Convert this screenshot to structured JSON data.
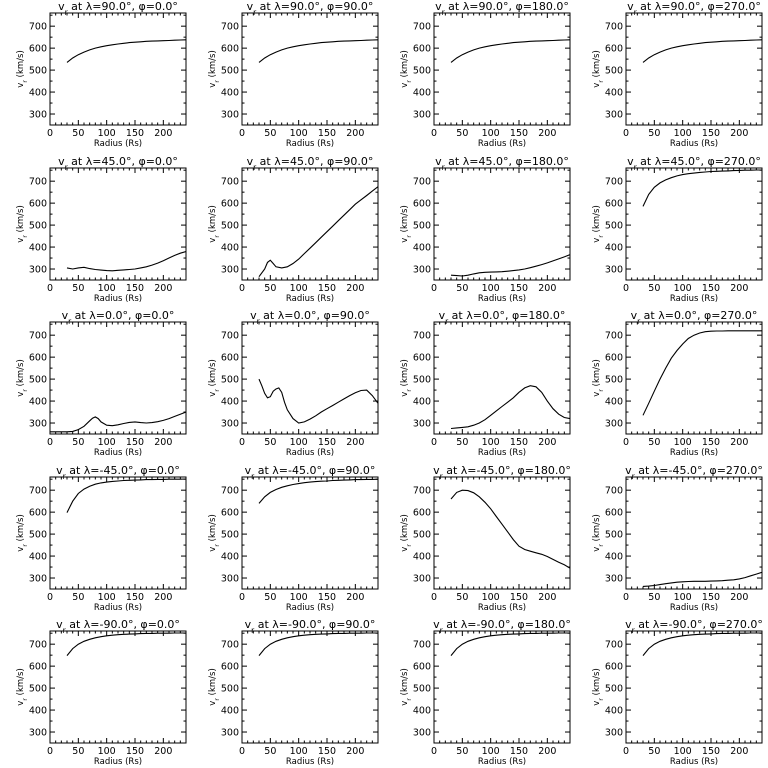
{
  "chart_data": [
    {
      "type": "line",
      "title": "v_r at λ=90.0°, φ=0.0°",
      "xlabel": "Radius (Rs)",
      "ylabel": "v_r (km/s)",
      "xlim": [
        0,
        240
      ],
      "ylim": [
        250,
        760
      ],
      "x": [
        30,
        40,
        50,
        60,
        70,
        80,
        90,
        100,
        110,
        120,
        130,
        140,
        150,
        160,
        170,
        180,
        190,
        200,
        210,
        220,
        230,
        240
      ],
      "y": [
        535,
        555,
        570,
        582,
        592,
        600,
        606,
        611,
        615,
        619,
        622,
        625,
        627,
        629,
        631,
        632,
        633,
        634,
        635,
        636,
        637,
        638
      ]
    },
    {
      "type": "line",
      "title": "v_r at λ=90.0°, φ=90.0°",
      "xlabel": "Radius (Rs)",
      "ylabel": "v_r (km/s)",
      "xlim": [
        0,
        240
      ],
      "ylim": [
        250,
        760
      ],
      "x": [
        30,
        40,
        50,
        60,
        70,
        80,
        90,
        100,
        110,
        120,
        130,
        140,
        150,
        160,
        170,
        180,
        190,
        200,
        210,
        220,
        230,
        240
      ],
      "y": [
        535,
        555,
        570,
        582,
        592,
        600,
        606,
        611,
        615,
        619,
        622,
        625,
        627,
        629,
        631,
        632,
        633,
        634,
        635,
        636,
        637,
        638
      ]
    },
    {
      "type": "line",
      "title": "v_r at λ=90.0°, φ=180.0°",
      "xlabel": "Radius (Rs)",
      "ylabel": "v_r (km/s)",
      "xlim": [
        0,
        240
      ],
      "ylim": [
        250,
        760
      ],
      "x": [
        30,
        40,
        50,
        60,
        70,
        80,
        90,
        100,
        110,
        120,
        130,
        140,
        150,
        160,
        170,
        180,
        190,
        200,
        210,
        220,
        230,
        240
      ],
      "y": [
        535,
        555,
        570,
        582,
        592,
        600,
        606,
        611,
        615,
        619,
        622,
        625,
        627,
        629,
        631,
        632,
        633,
        634,
        635,
        636,
        637,
        638
      ]
    },
    {
      "type": "line",
      "title": "v_r at λ=90.0°, φ=270.0°",
      "xlabel": "Radius (Rs)",
      "ylabel": "v_r (km/s)",
      "xlim": [
        0,
        240
      ],
      "ylim": [
        250,
        760
      ],
      "x": [
        30,
        40,
        50,
        60,
        70,
        80,
        90,
        100,
        110,
        120,
        130,
        140,
        150,
        160,
        170,
        180,
        190,
        200,
        210,
        220,
        230,
        240
      ],
      "y": [
        535,
        555,
        570,
        582,
        592,
        600,
        606,
        611,
        615,
        619,
        622,
        625,
        627,
        629,
        631,
        632,
        633,
        634,
        635,
        636,
        637,
        638
      ]
    },
    {
      "type": "line",
      "title": "v_r at λ=45.0°, φ=0.0°",
      "xlabel": "Radius (Rs)",
      "ylabel": "v_r (km/s)",
      "xlim": [
        0,
        240
      ],
      "ylim": [
        250,
        760
      ],
      "x": [
        30,
        40,
        50,
        60,
        70,
        80,
        90,
        100,
        110,
        120,
        130,
        140,
        150,
        160,
        170,
        180,
        190,
        200,
        210,
        220,
        230,
        240
      ],
      "y": [
        305,
        300,
        305,
        308,
        302,
        298,
        295,
        293,
        292,
        294,
        296,
        298,
        300,
        305,
        310,
        318,
        327,
        338,
        350,
        362,
        372,
        380
      ]
    },
    {
      "type": "line",
      "title": "v_r at λ=45.0°, φ=90.0°",
      "xlabel": "Radius (Rs)",
      "ylabel": "v_r (km/s)",
      "xlim": [
        0,
        240
      ],
      "ylim": [
        250,
        760
      ],
      "x": [
        30,
        40,
        45,
        50,
        55,
        60,
        70,
        80,
        90,
        100,
        110,
        120,
        130,
        140,
        150,
        160,
        170,
        180,
        190,
        200,
        210,
        220,
        230,
        240
      ],
      "y": [
        265,
        300,
        330,
        340,
        325,
        310,
        305,
        310,
        325,
        345,
        370,
        395,
        420,
        445,
        470,
        495,
        520,
        545,
        570,
        595,
        615,
        635,
        655,
        675
      ]
    },
    {
      "type": "line",
      "title": "v_r at λ=45.0°, φ=180.0°",
      "xlabel": "Radius (Rs)",
      "ylabel": "v_r (km/s)",
      "xlim": [
        0,
        240
      ],
      "ylim": [
        250,
        760
      ],
      "x": [
        30,
        40,
        50,
        60,
        70,
        80,
        90,
        100,
        110,
        120,
        130,
        140,
        150,
        160,
        170,
        180,
        190,
        200,
        210,
        220,
        230,
        240
      ],
      "y": [
        272,
        270,
        268,
        272,
        278,
        283,
        285,
        286,
        287,
        288,
        290,
        293,
        296,
        300,
        306,
        313,
        320,
        328,
        337,
        346,
        355,
        365
      ]
    },
    {
      "type": "line",
      "title": "v_r at λ=45.0°, φ=270.0°",
      "xlabel": "Radius (Rs)",
      "ylabel": "v_r (km/s)",
      "xlim": [
        0,
        240
      ],
      "ylim": [
        250,
        760
      ],
      "x": [
        30,
        40,
        50,
        60,
        70,
        80,
        90,
        100,
        110,
        120,
        130,
        140,
        150,
        160,
        170,
        180,
        190,
        200,
        210,
        220,
        230,
        240
      ],
      "y": [
        585,
        640,
        672,
        692,
        706,
        716,
        724,
        730,
        734,
        737,
        740,
        742,
        744,
        745,
        746,
        747,
        748,
        749,
        750,
        750,
        751,
        751
      ]
    },
    {
      "type": "line",
      "title": "v_r at λ=0.0°, φ=0.0°",
      "xlabel": "Radius (Rs)",
      "ylabel": "v_r (km/s)",
      "xlim": [
        0,
        240
      ],
      "ylim": [
        250,
        760
      ],
      "x": [
        0,
        30,
        40,
        50,
        60,
        70,
        75,
        80,
        85,
        90,
        100,
        110,
        120,
        130,
        140,
        150,
        160,
        170,
        180,
        190,
        200,
        210,
        220,
        230,
        240
      ],
      "y": [
        260,
        260,
        262,
        270,
        285,
        310,
        322,
        328,
        320,
        305,
        290,
        288,
        292,
        298,
        303,
        305,
        302,
        300,
        302,
        306,
        312,
        320,
        330,
        340,
        350
      ]
    },
    {
      "type": "line",
      "title": "v_r at λ=0.0°, φ=90.0°",
      "xlabel": "Radius (Rs)",
      "ylabel": "v_r (km/s)",
      "xlim": [
        0,
        240
      ],
      "ylim": [
        250,
        760
      ],
      "x": [
        30,
        35,
        40,
        45,
        50,
        55,
        60,
        65,
        70,
        75,
        80,
        90,
        100,
        110,
        120,
        130,
        140,
        150,
        160,
        170,
        180,
        190,
        200,
        210,
        220,
        230,
        240
      ],
      "y": [
        500,
        470,
        435,
        415,
        420,
        445,
        455,
        460,
        440,
        395,
        360,
        320,
        300,
        305,
        318,
        333,
        350,
        365,
        380,
        395,
        410,
        425,
        438,
        448,
        450,
        425,
        390
      ]
    },
    {
      "type": "line",
      "title": "v_r at λ=0.0°, φ=180.0°",
      "xlabel": "Radius (Rs)",
      "ylabel": "v_r (km/s)",
      "xlim": [
        0,
        240
      ],
      "ylim": [
        250,
        760
      ],
      "x": [
        30,
        40,
        50,
        60,
        70,
        80,
        90,
        100,
        110,
        120,
        130,
        140,
        150,
        160,
        170,
        180,
        190,
        200,
        210,
        220,
        230,
        240
      ],
      "y": [
        275,
        278,
        280,
        283,
        290,
        300,
        315,
        335,
        355,
        375,
        395,
        415,
        440,
        460,
        470,
        465,
        440,
        400,
        365,
        340,
        325,
        320
      ]
    },
    {
      "type": "line",
      "title": "v_r at λ=0.0°, φ=270.0°",
      "xlabel": "Radius (Rs)",
      "ylabel": "v_r (km/s)",
      "xlim": [
        0,
        240
      ],
      "ylim": [
        250,
        760
      ],
      "x": [
        30,
        40,
        50,
        60,
        70,
        80,
        90,
        100,
        110,
        120,
        130,
        140,
        150,
        160,
        170,
        180,
        190,
        200,
        210,
        220,
        230,
        240
      ],
      "y": [
        335,
        390,
        445,
        500,
        550,
        595,
        630,
        660,
        685,
        700,
        710,
        716,
        718,
        719,
        719,
        720,
        720,
        720,
        720,
        720,
        720,
        720
      ]
    },
    {
      "type": "line",
      "title": "v_r at λ=-45.0°, φ=0.0°",
      "xlabel": "Radius (Rs)",
      "ylabel": "v_r (km/s)",
      "xlim": [
        0,
        240
      ],
      "ylim": [
        250,
        760
      ],
      "x": [
        30,
        40,
        50,
        60,
        70,
        80,
        90,
        100,
        110,
        120,
        130,
        140,
        150,
        160,
        170,
        180,
        190,
        200,
        210,
        220,
        230,
        240
      ],
      "y": [
        598,
        650,
        685,
        705,
        718,
        727,
        733,
        737,
        740,
        742,
        744,
        745,
        746,
        747,
        748,
        748,
        749,
        749,
        750,
        750,
        750,
        751
      ]
    },
    {
      "type": "line",
      "title": "v_r at λ=-45.0°, φ=90.0°",
      "xlabel": "Radius (Rs)",
      "ylabel": "v_r (km/s)",
      "xlim": [
        0,
        240
      ],
      "ylim": [
        250,
        760
      ],
      "x": [
        30,
        40,
        50,
        60,
        70,
        80,
        90,
        100,
        110,
        120,
        130,
        140,
        150,
        160,
        170,
        180,
        190,
        200,
        210,
        220,
        230,
        240
      ],
      "y": [
        640,
        670,
        690,
        703,
        713,
        720,
        726,
        730,
        734,
        737,
        739,
        741,
        742,
        744,
        745,
        746,
        747,
        748,
        748,
        749,
        749,
        750
      ]
    },
    {
      "type": "line",
      "title": "v_r at λ=-45.0°, φ=180.0°",
      "xlabel": "Radius (Rs)",
      "ylabel": "v_r (km/s)",
      "xlim": [
        0,
        240
      ],
      "ylim": [
        250,
        760
      ],
      "x": [
        30,
        40,
        50,
        60,
        70,
        80,
        90,
        100,
        110,
        120,
        130,
        140,
        150,
        160,
        170,
        180,
        190,
        200,
        210,
        220,
        230,
        240
      ],
      "y": [
        660,
        690,
        700,
        698,
        688,
        670,
        645,
        615,
        580,
        545,
        510,
        475,
        445,
        430,
        422,
        415,
        408,
        398,
        385,
        372,
        360,
        345
      ]
    },
    {
      "type": "line",
      "title": "v_r at λ=-45.0°, φ=270.0°",
      "xlabel": "Radius (Rs)",
      "ylabel": "v_r (km/s)",
      "xlim": [
        0,
        240
      ],
      "ylim": [
        250,
        760
      ],
      "x": [
        30,
        40,
        50,
        60,
        70,
        80,
        90,
        100,
        110,
        120,
        130,
        140,
        150,
        160,
        170,
        180,
        190,
        200,
        210,
        220,
        230,
        240
      ],
      "y": [
        262,
        263,
        266,
        270,
        274,
        278,
        281,
        283,
        284,
        285,
        285,
        285,
        286,
        287,
        288,
        290,
        292,
        296,
        302,
        310,
        318,
        326
      ]
    },
    {
      "type": "line",
      "title": "v_r at λ=-90.0°, φ=0.0°",
      "xlabel": "Radius (Rs)",
      "ylabel": "v_r (km/s)",
      "xlim": [
        0,
        240
      ],
      "ylim": [
        250,
        760
      ],
      "x": [
        30,
        40,
        50,
        60,
        70,
        80,
        90,
        100,
        110,
        120,
        130,
        140,
        150,
        160,
        170,
        180,
        190,
        200,
        210,
        220,
        230,
        240
      ],
      "y": [
        648,
        680,
        700,
        713,
        722,
        729,
        734,
        738,
        741,
        743,
        745,
        746,
        747,
        748,
        749,
        749,
        750,
        750,
        750,
        751,
        751,
        751
      ]
    },
    {
      "type": "line",
      "title": "v_r at λ=-90.0°, φ=90.0°",
      "xlabel": "Radius (Rs)",
      "ylabel": "v_r (km/s)",
      "xlim": [
        0,
        240
      ],
      "ylim": [
        250,
        760
      ],
      "x": [
        30,
        40,
        50,
        60,
        70,
        80,
        90,
        100,
        110,
        120,
        130,
        140,
        150,
        160,
        170,
        180,
        190,
        200,
        210,
        220,
        230,
        240
      ],
      "y": [
        648,
        680,
        700,
        713,
        722,
        729,
        734,
        738,
        741,
        743,
        745,
        746,
        747,
        748,
        749,
        749,
        750,
        750,
        750,
        751,
        751,
        751
      ]
    },
    {
      "type": "line",
      "title": "v_r at λ=-90.0°, φ=180.0°",
      "xlabel": "Radius (Rs)",
      "ylabel": "v_r (km/s)",
      "xlim": [
        0,
        240
      ],
      "ylim": [
        250,
        760
      ],
      "x": [
        30,
        40,
        50,
        60,
        70,
        80,
        90,
        100,
        110,
        120,
        130,
        140,
        150,
        160,
        170,
        180,
        190,
        200,
        210,
        220,
        230,
        240
      ],
      "y": [
        648,
        680,
        700,
        713,
        722,
        729,
        734,
        738,
        741,
        743,
        745,
        746,
        747,
        748,
        749,
        749,
        750,
        750,
        750,
        751,
        751,
        751
      ]
    },
    {
      "type": "line",
      "title": "v_r at λ=-90.0°, φ=270.0°",
      "xlabel": "Radius (Rs)",
      "ylabel": "v_r (km/s)",
      "xlim": [
        0,
        240
      ],
      "ylim": [
        250,
        760
      ],
      "x": [
        30,
        40,
        50,
        60,
        70,
        80,
        90,
        100,
        110,
        120,
        130,
        140,
        150,
        160,
        170,
        180,
        190,
        200,
        210,
        220,
        230,
        240
      ],
      "y": [
        648,
        680,
        700,
        713,
        722,
        729,
        734,
        738,
        741,
        743,
        745,
        746,
        747,
        748,
        749,
        749,
        750,
        750,
        750,
        751,
        751,
        751
      ]
    }
  ],
  "axes": {
    "xticks": [
      0,
      50,
      100,
      150,
      200
    ],
    "yticks": [
      300,
      400,
      500,
      600,
      700
    ]
  }
}
